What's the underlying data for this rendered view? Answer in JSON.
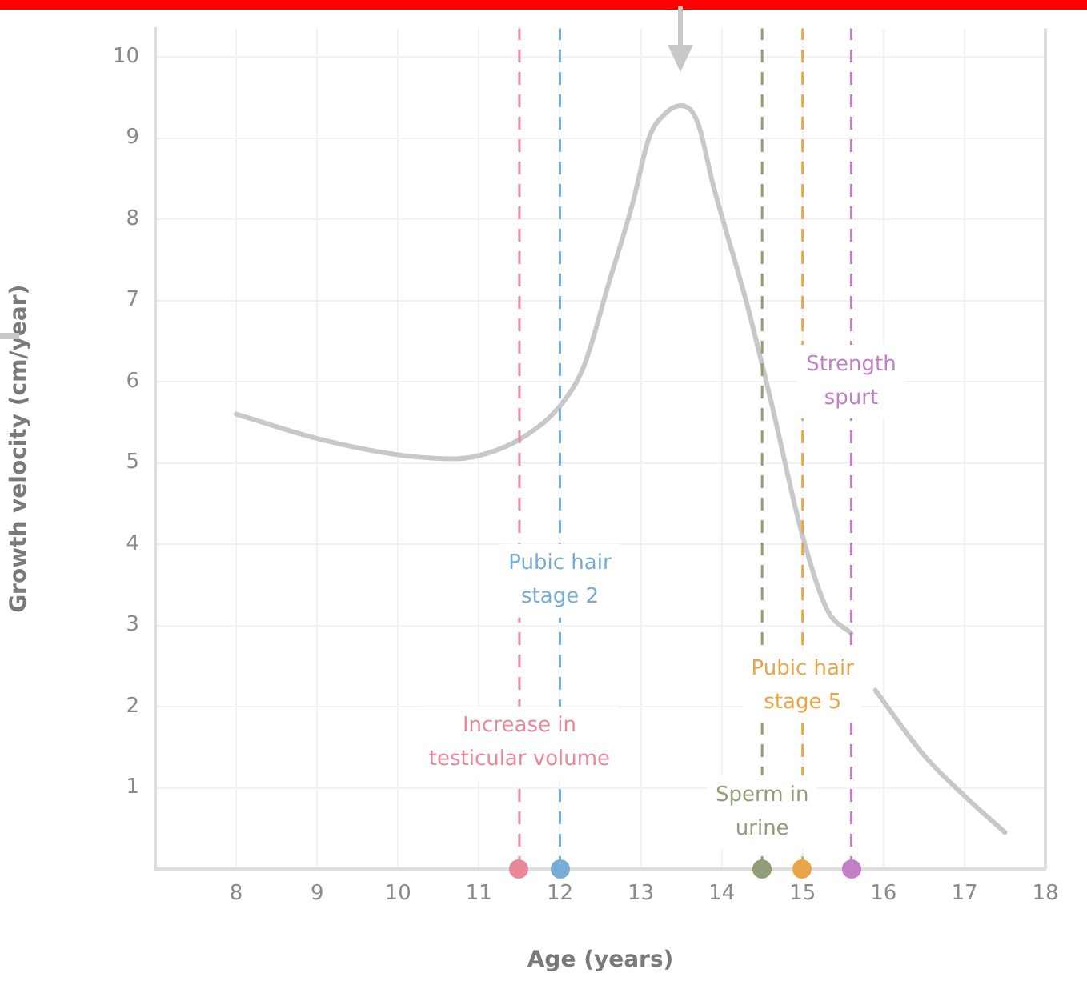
{
  "chart_data": {
    "type": "line",
    "xlabel": "Age (years)",
    "ylabel": "Growth velocity (cm/year)",
    "x": [
      8,
      9,
      10,
      10.7,
      11.2,
      11.6,
      12,
      12.3,
      12.6,
      12.9,
      13.1,
      13.3,
      13.5,
      13.7,
      13.9,
      14.3,
      14.6,
      15,
      15.3,
      15.6,
      15.75,
      15.9,
      16.5,
      17,
      17.5
    ],
    "series": [
      {
        "color": "#c8c8c8",
        "values": [
          5.6,
          5.3,
          5.1,
          5.05,
          5.15,
          5.35,
          5.7,
          6.2,
          7.2,
          8.2,
          9,
          9.3,
          9.4,
          9.2,
          8.4,
          7,
          5.8,
          4.1,
          3.2,
          2.9,
          null,
          2.2,
          1.4,
          0.9,
          0.45
        ]
      }
    ],
    "xlim": [
      7,
      18
    ],
    "xticks": [
      8,
      9,
      10,
      11,
      12,
      13,
      14,
      15,
      16,
      17,
      18
    ],
    "ylim": [
      0,
      10.35
    ],
    "yticks": [
      1,
      2,
      3,
      4,
      5,
      6,
      7,
      8,
      9,
      10
    ],
    "grid": true,
    "legend": false,
    "marker": "none",
    "line_style": "solid",
    "ref_lines": [
      {
        "axis": "x",
        "value": 11.5,
        "label": "Increase in\ntesticular volume",
        "color": "#e8899a",
        "line_style": "dashed"
      },
      {
        "axis": "x",
        "value": 12,
        "label": "Pubic hair\nstage 2",
        "color": "#78acd6",
        "line_style": "dashed"
      },
      {
        "axis": "x",
        "value": 14.5,
        "label": "Sperm in\nurine",
        "color": "#8f9e78",
        "line_style": "dashed"
      },
      {
        "axis": "x",
        "value": 15,
        "label": "Pubic hair\nstage 5",
        "color": "#e9a445",
        "line_style": "dashed"
      },
      {
        "axis": "x",
        "value": 15.6,
        "label": "Strength\nspurt",
        "color": "#c27fc4",
        "line_style": "dashed"
      }
    ]
  }
}
